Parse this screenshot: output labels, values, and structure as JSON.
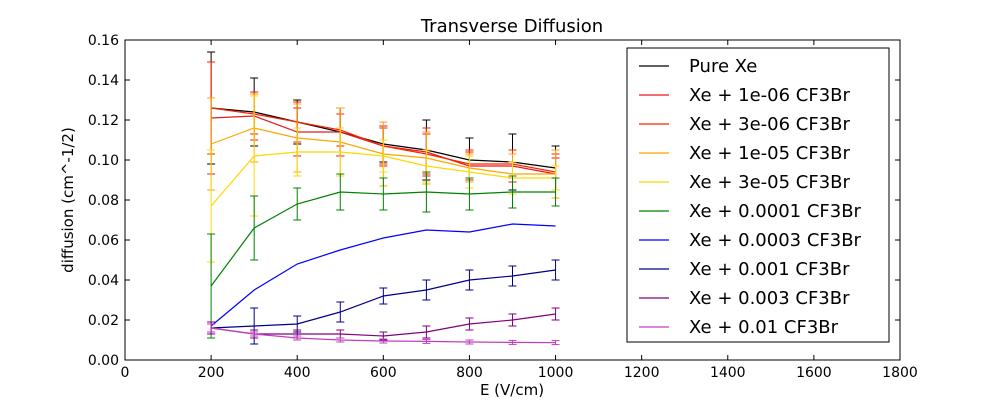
{
  "chart_data": {
    "type": "line",
    "title": "Transverse Diffusion",
    "xlabel": "E (V/cm)",
    "ylabel": "diffusion (cm^-1/2)",
    "xlim": [
      0,
      1800
    ],
    "ylim": [
      0,
      0.16
    ],
    "xticks": [
      "0",
      "200",
      "400",
      "600",
      "800",
      "1000",
      "1200",
      "1400",
      "1600",
      "1800"
    ],
    "yticks": [
      "0.00",
      "0.02",
      "0.04",
      "0.06",
      "0.08",
      "0.10",
      "0.12",
      "0.14",
      "0.16"
    ],
    "grid": false,
    "legend_position": "top-right",
    "x": [
      200,
      300,
      400,
      500,
      600,
      700,
      800,
      900,
      1000
    ],
    "series": [
      {
        "name": "Pure Xe",
        "color": "#000000",
        "values": [
          0.126,
          0.124,
          0.119,
          0.114,
          0.108,
          0.105,
          0.1,
          0.099,
          0.096
        ],
        "errors": [
          0.028,
          0.017,
          0.011,
          0.012,
          0.009,
          0.015,
          0.011,
          0.014,
          0.011
        ]
      },
      {
        "name": "Xe + 1e-06 CF3Br",
        "color": "#e41a1c",
        "values": [
          0.121,
          0.122,
          0.114,
          0.114,
          0.107,
          0.104,
          0.097,
          0.097,
          0.093
        ],
        "errors": [
          0.028,
          0.012,
          0.012,
          0.012,
          0.01,
          0.012,
          0.007,
          0.008,
          0.008
        ]
      },
      {
        "name": "Xe + 3e-06 CF3Br",
        "color": "#ff2200",
        "values": [
          0.126,
          0.123,
          0.119,
          0.115,
          0.107,
          0.103,
          0.098,
          0.098,
          0.094
        ],
        "errors": [
          0.023,
          0.01,
          0.01,
          0.008,
          0.009,
          0.01,
          0.007,
          0.007,
          0.009
        ]
      },
      {
        "name": "Xe + 1e-05 CF3Br",
        "color": "#ffa500",
        "values": [
          0.108,
          0.116,
          0.111,
          0.109,
          0.103,
          0.101,
          0.096,
          0.093,
          0.093
        ],
        "errors": [
          0.023,
          0.017,
          0.017,
          0.017,
          0.016,
          0.013,
          0.007,
          0.01,
          0.012
        ]
      },
      {
        "name": "Xe + 3e-05 CF3Br",
        "color": "#ffd700",
        "values": [
          0.077,
          0.102,
          0.104,
          0.104,
          0.102,
          0.097,
          0.094,
          0.091,
          0.091
        ],
        "errors": [
          0.028,
          0.03,
          0.012,
          0.012,
          0.008,
          0.008,
          0.008,
          0.008,
          0.006
        ]
      },
      {
        "name": "Xe + 0.0001 CF3Br",
        "color": "#008000",
        "values": [
          0.037,
          0.066,
          0.078,
          0.084,
          0.083,
          0.084,
          0.083,
          0.084,
          0.084
        ],
        "errors": [
          0.026,
          0.016,
          0.008,
          0.009,
          0.008,
          0.01,
          0.008,
          0.008,
          0.007
        ]
      },
      {
        "name": "Xe + 0.0003 CF3Br",
        "color": "#0000ff",
        "values": [
          0.017,
          0.035,
          0.048,
          0.055,
          0.061,
          0.065,
          0.064,
          0.068,
          0.067
        ]
      },
      {
        "name": "Xe + 0.001 CF3Br",
        "color": "#00008b",
        "values": [
          0.016,
          0.017,
          0.018,
          0.024,
          0.032,
          0.035,
          0.04,
          0.042,
          0.045
        ],
        "errors": [
          0.002,
          0.009,
          0.004,
          0.005,
          0.004,
          0.005,
          0.005,
          0.005,
          0.005
        ]
      },
      {
        "name": "Xe + 0.003 CF3Br",
        "color": "#800080",
        "values": [
          0.016,
          0.013,
          0.013,
          0.013,
          0.012,
          0.014,
          0.018,
          0.02,
          0.023
        ],
        "errors": [
          0.003,
          0.002,
          0.002,
          0.002,
          0.002,
          0.003,
          0.003,
          0.003,
          0.003
        ]
      },
      {
        "name": "Xe + 0.01 CF3Br",
        "color": "#bf40bf",
        "values": [
          0.016,
          0.013,
          0.011,
          0.01,
          0.0095,
          0.0093,
          0.009,
          0.0088,
          0.0087
        ],
        "errors": [
          0.002,
          0.001,
          0.001,
          0.001,
          0.001,
          0.001,
          0.001,
          0.001,
          0.001
        ]
      }
    ]
  }
}
